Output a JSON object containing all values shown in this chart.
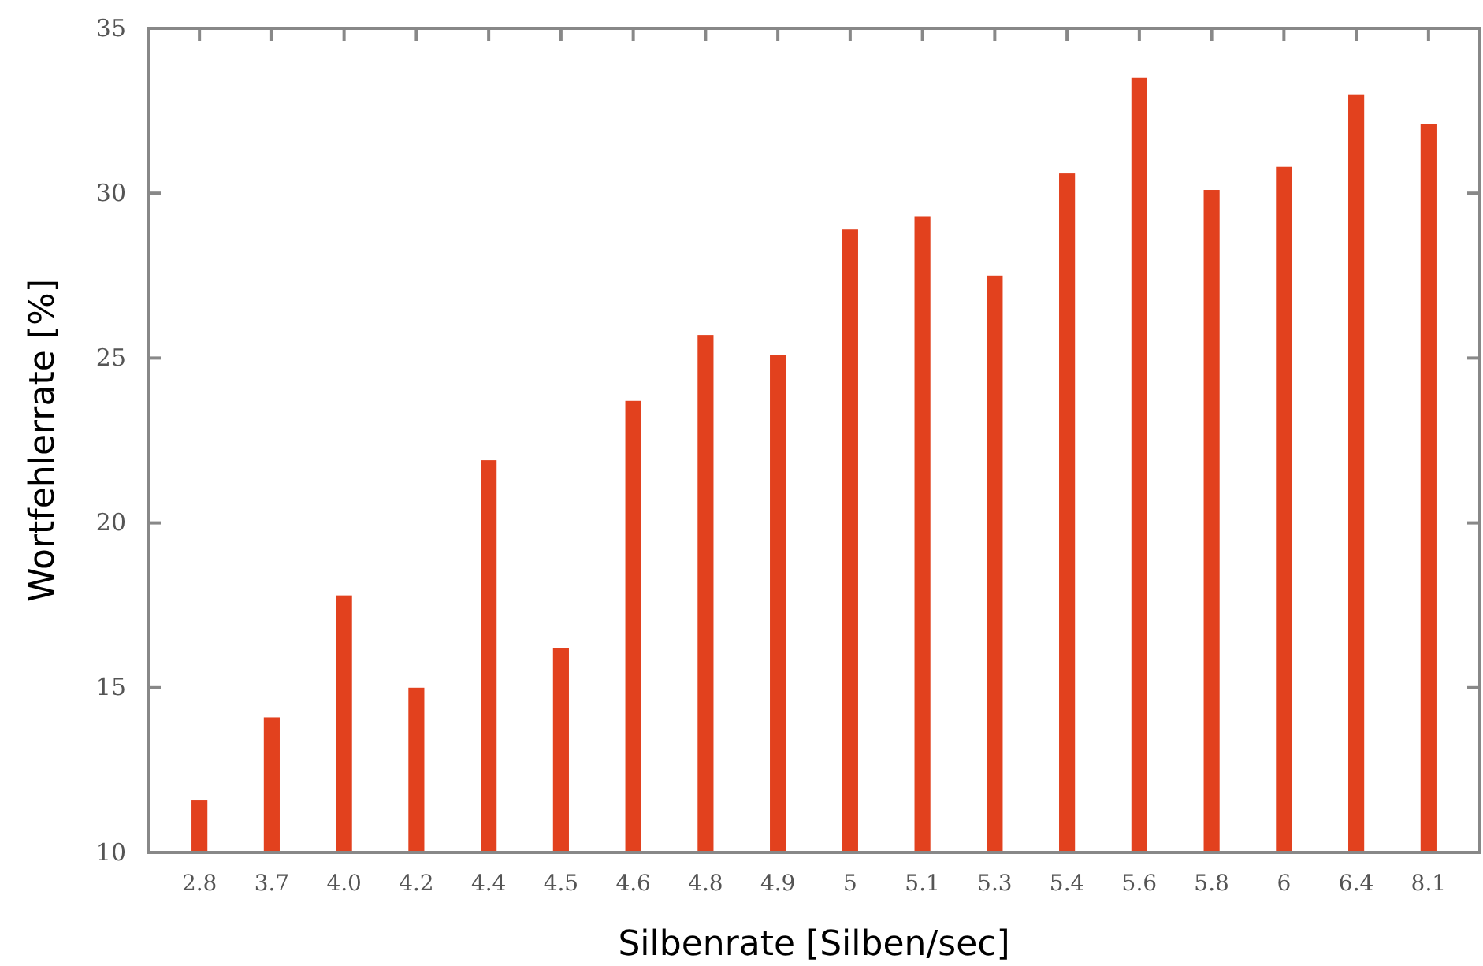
{
  "chart_data": {
    "type": "bar",
    "xlabel": "Silbenrate [Silben/sec]",
    "ylabel": "Wortfehlerrate [%]",
    "categories": [
      "2.8",
      "3.7",
      "4.0",
      "4.2",
      "4.4",
      "4.5",
      "4.6",
      "4.8",
      "4.9",
      "5",
      "5.1",
      "5.3",
      "5.4",
      "5.6",
      "5.8",
      "6",
      "6.4",
      "8.1"
    ],
    "values": [
      11.6,
      14.1,
      17.8,
      15.0,
      21.9,
      16.2,
      23.7,
      25.7,
      25.1,
      28.9,
      29.3,
      27.5,
      30.6,
      33.5,
      30.1,
      30.8,
      33.0,
      32.1
    ],
    "color": "#e2411e",
    "ylim": [
      10,
      35
    ],
    "yticks": [
      10,
      15,
      20,
      25,
      30,
      35
    ],
    "grid": false
  }
}
